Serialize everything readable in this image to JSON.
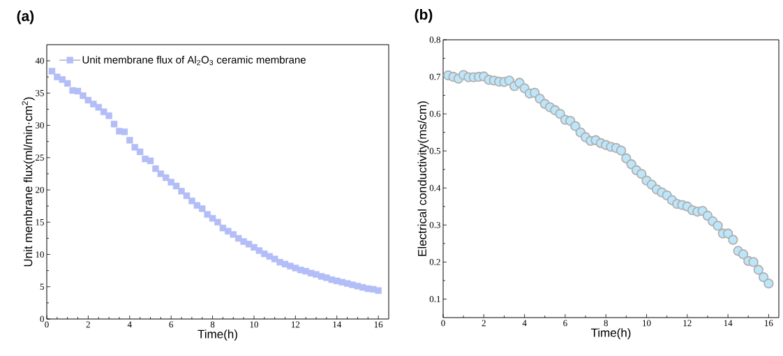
{
  "chart_data": [
    {
      "type": "scatter",
      "title": "(a)",
      "xlabel": "Time(h)",
      "ylabel": "Unit membrane flux(ml/min·cm$^{2}$)",
      "x": [
        0.25,
        0.5,
        0.75,
        1.0,
        1.25,
        1.5,
        1.75,
        2.0,
        2.25,
        2.5,
        2.75,
        3.0,
        3.25,
        3.5,
        3.75,
        4.0,
        4.25,
        4.5,
        4.75,
        5.0,
        5.25,
        5.5,
        5.75,
        6.0,
        6.25,
        6.5,
        6.75,
        7.0,
        7.25,
        7.5,
        7.75,
        8.0,
        8.25,
        8.5,
        8.75,
        9.0,
        9.25,
        9.5,
        9.75,
        10.0,
        10.25,
        10.5,
        10.75,
        11.0,
        11.25,
        11.5,
        11.75,
        12.0,
        12.25,
        12.5,
        12.75,
        13.0,
        13.25,
        13.5,
        13.75,
        14.0,
        14.25,
        14.5,
        14.75,
        15.0,
        15.25,
        15.5,
        15.75,
        16.0
      ],
      "series": [
        {
          "name": "Unit membrane flux of Al$_{2}$O$_{3}$ ceramic membrane",
          "color": "#b3bdf7",
          "values": [
            38.4,
            37.5,
            37.1,
            36.5,
            35.4,
            35.3,
            34.6,
            33.9,
            33.3,
            32.8,
            32.1,
            31.5,
            30.2,
            29.1,
            29.0,
            27.7,
            26.6,
            25.9,
            24.8,
            24.5,
            23.3,
            22.5,
            21.9,
            21.2,
            20.6,
            19.8,
            19.1,
            18.3,
            17.6,
            17.1,
            16.2,
            15.6,
            15.0,
            14.1,
            13.6,
            13.1,
            12.5,
            12.0,
            11.6,
            11.1,
            10.6,
            10.1,
            9.7,
            9.3,
            8.8,
            8.5,
            8.2,
            7.9,
            7.6,
            7.4,
            7.1,
            6.9,
            6.6,
            6.4,
            6.1,
            5.9,
            5.7,
            5.5,
            5.3,
            5.1,
            4.9,
            4.7,
            4.6,
            4.4
          ]
        }
      ],
      "xlim": [
        0,
        16.5
      ],
      "ylim": [
        0,
        42.5
      ],
      "xticks": [
        0,
        2,
        4,
        6,
        8,
        10,
        12,
        14,
        16
      ],
      "yticks": [
        0,
        5,
        10,
        15,
        20,
        25,
        30,
        35,
        40
      ],
      "marker": "square",
      "legend": "top left"
    },
    {
      "type": "scatter",
      "title": "(b)",
      "xlabel": "Time(h)",
      "ylabel": "Electrical conductivity(ms/cm)",
      "x": [
        0.25,
        0.5,
        0.75,
        1.0,
        1.25,
        1.5,
        1.75,
        2.0,
        2.25,
        2.5,
        2.75,
        3.0,
        3.25,
        3.5,
        3.75,
        4.0,
        4.25,
        4.5,
        4.75,
        5.0,
        5.25,
        5.5,
        5.75,
        6.0,
        6.25,
        6.5,
        6.75,
        7.0,
        7.25,
        7.5,
        7.75,
        8.0,
        8.25,
        8.5,
        8.75,
        9.0,
        9.25,
        9.5,
        9.75,
        10.0,
        10.25,
        10.5,
        10.75,
        11.0,
        11.25,
        11.5,
        11.75,
        12.0,
        12.25,
        12.5,
        12.75,
        13.0,
        13.25,
        13.5,
        13.75,
        14.0,
        14.25,
        14.5,
        14.75,
        15.0,
        15.25,
        15.5,
        15.75,
        16.0
      ],
      "series": [
        {
          "color": "#bde6fb",
          "values": [
            0.704,
            0.7,
            0.695,
            0.705,
            0.699,
            0.699,
            0.7,
            0.701,
            0.692,
            0.69,
            0.687,
            0.686,
            0.69,
            0.675,
            0.684,
            0.669,
            0.655,
            0.657,
            0.641,
            0.627,
            0.618,
            0.61,
            0.6,
            0.584,
            0.581,
            0.567,
            0.55,
            0.537,
            0.527,
            0.529,
            0.521,
            0.516,
            0.511,
            0.508,
            0.501,
            0.48,
            0.464,
            0.448,
            0.438,
            0.42,
            0.409,
            0.396,
            0.388,
            0.38,
            0.367,
            0.357,
            0.354,
            0.35,
            0.34,
            0.336,
            0.338,
            0.325,
            0.31,
            0.298,
            0.277,
            0.277,
            0.26,
            0.23,
            0.221,
            0.203,
            0.2,
            0.179,
            0.159,
            0.142
          ]
        }
      ],
      "xlim": [
        0,
        16.5
      ],
      "ylim": [
        0.05,
        0.8
      ],
      "xticks": [
        0,
        2,
        4,
        6,
        8,
        10,
        12,
        14,
        16
      ],
      "yticks": [
        0.1,
        0.2,
        0.3,
        0.4,
        0.5,
        0.6,
        0.7,
        0.8
      ],
      "marker": "circle"
    }
  ]
}
